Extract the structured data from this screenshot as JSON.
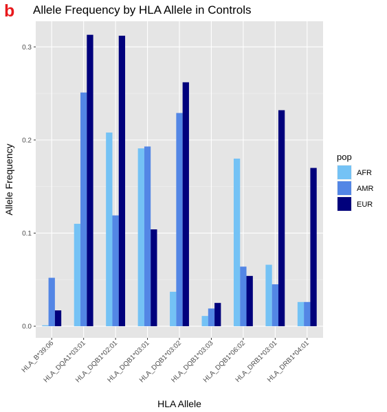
{
  "figure": {
    "panel_letter": "b",
    "panel_letter_color": "#e8191c"
  },
  "chart_data": {
    "type": "bar",
    "title": "Allele Frequency by HLA Allele in Controls",
    "xlabel": "HLA Allele",
    "ylabel": "Allele Frequency",
    "ylim": [
      -0.0125,
      0.3275
    ],
    "yticks": [
      0.0,
      0.1,
      0.2,
      0.3
    ],
    "ytick_labels": [
      "0.0",
      "0.1",
      "0.2",
      "0.3"
    ],
    "grid": true,
    "background": "#e5e5e5",
    "legend": {
      "title": "pop",
      "placement": "right"
    },
    "categories": [
      "HLA_B*39:06",
      "HLA_DQA1*03:01",
      "HLA_DQB1*02:01",
      "HLA_DQB1*03:01",
      "HLA_DQB1*03:02",
      "HLA_DQB1*03:03",
      "HLA_DQB1*06:02",
      "HLA_DRB1*03:01",
      "HLA_DRB1*04:01"
    ],
    "series": [
      {
        "name": "AFR",
        "color": "#74c2f5",
        "values": [
          0.001,
          0.11,
          0.208,
          0.191,
          0.037,
          0.011,
          0.18,
          0.066,
          0.026
        ]
      },
      {
        "name": "AMR",
        "color": "#5386e5",
        "values": [
          0.052,
          0.251,
          0.119,
          0.193,
          0.229,
          0.019,
          0.064,
          0.045,
          0.026
        ]
      },
      {
        "name": "EUR",
        "color": "#01017c",
        "values": [
          0.017,
          0.313,
          0.312,
          0.104,
          0.262,
          0.025,
          0.054,
          0.232,
          0.17
        ]
      }
    ]
  }
}
